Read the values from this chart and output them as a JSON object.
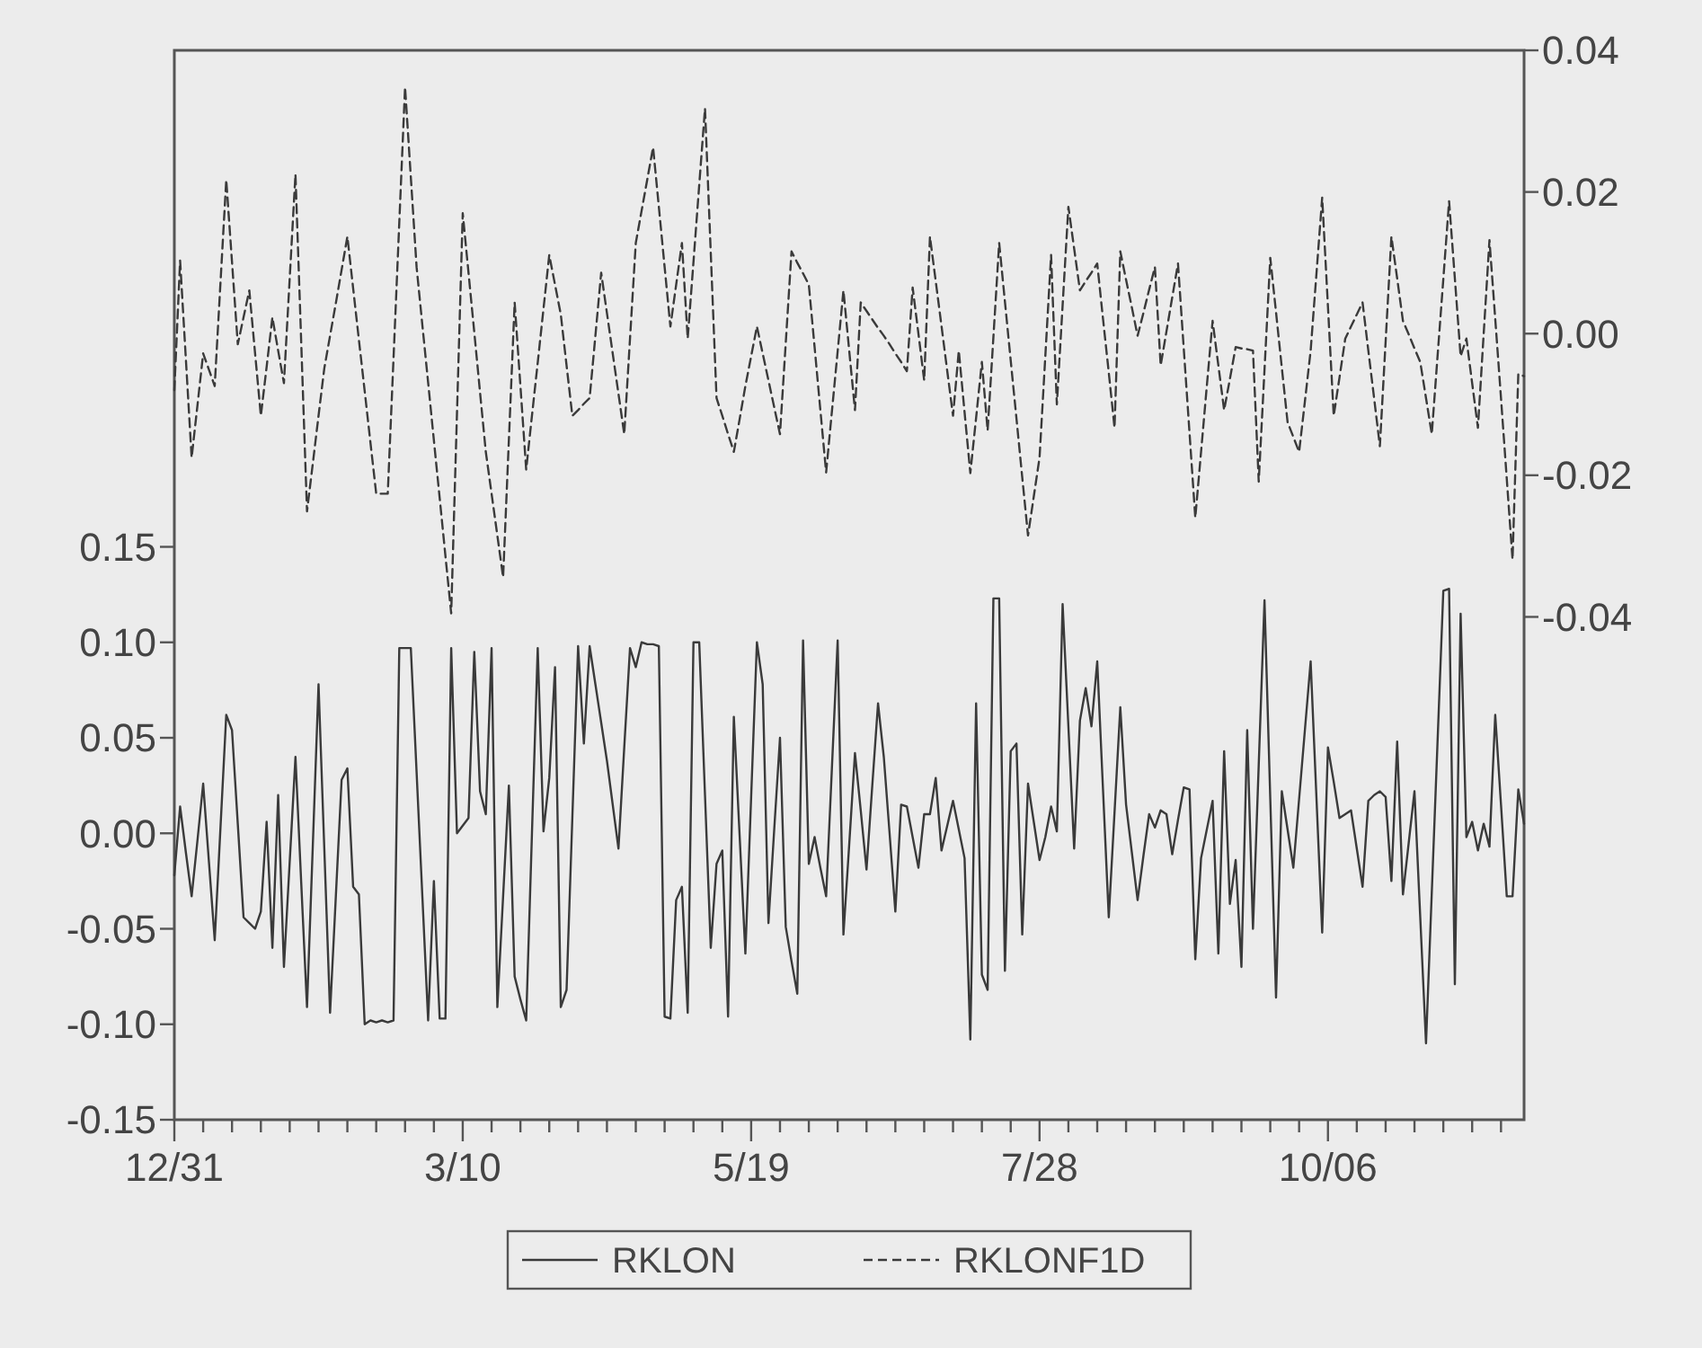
{
  "chart_data": {
    "type": "line",
    "categories": [
      "12/31",
      null,
      null,
      null,
      null,
      null,
      null,
      null,
      null,
      null,
      null,
      null,
      null,
      null,
      null,
      null,
      null,
      null,
      null,
      null,
      null,
      null,
      null,
      null,
      null,
      null,
      null,
      null,
      null,
      null,
      null,
      null,
      null,
      null,
      null,
      null,
      null,
      null,
      null,
      null,
      null,
      null,
      null,
      null,
      null,
      null,
      null,
      null,
      null,
      null,
      "3/10",
      null,
      null,
      null,
      null,
      null,
      null,
      null,
      null,
      null,
      null,
      null,
      null,
      null,
      null,
      null,
      null,
      null,
      null,
      null,
      null,
      null,
      null,
      null,
      null,
      null,
      null,
      null,
      null,
      null,
      null,
      null,
      null,
      null,
      null,
      null,
      null,
      null,
      null,
      null,
      null,
      null,
      null,
      null,
      null,
      null,
      null,
      null,
      null,
      null,
      "5/19",
      null,
      null,
      null,
      null,
      null,
      null,
      null,
      null,
      null,
      null,
      null,
      null,
      null,
      null,
      null,
      null,
      null,
      null,
      null,
      null,
      null,
      null,
      null,
      null,
      null,
      null,
      null,
      null,
      null,
      null,
      null,
      null,
      null,
      null,
      null,
      null,
      null,
      null,
      null,
      null,
      null,
      null,
      null,
      null,
      null,
      null,
      null,
      null,
      null,
      "7/28",
      null,
      null,
      null,
      null,
      null,
      null,
      null,
      null,
      null,
      null,
      null,
      null,
      null,
      null,
      null,
      null,
      null,
      null,
      null,
      null,
      null,
      null,
      null,
      null,
      null,
      null,
      null,
      null,
      null,
      null,
      null,
      null,
      null,
      null,
      null,
      null,
      null,
      null,
      null,
      null,
      null,
      null,
      null,
      null,
      null,
      null,
      null,
      null,
      null,
      "10/06",
      null,
      null,
      null,
      null,
      null,
      null,
      null,
      null,
      null,
      null,
      null,
      null,
      null,
      null,
      null,
      null,
      null,
      null,
      null,
      null,
      null,
      null,
      null,
      null,
      null,
      null,
      null,
      null,
      null,
      null,
      null,
      null,
      null,
      null
    ],
    "ylim": [
      -0.15,
      0.41
    ],
    "yticks": [
      {
        "value": -0.15,
        "label": "-0.15"
      },
      {
        "value": -0.1,
        "label": "-0.10"
      },
      {
        "value": -0.05,
        "label": "-0.05"
      },
      {
        "value": 0,
        "label": "0.00"
      },
      {
        "value": 0.05,
        "label": "0.05"
      },
      {
        "value": 0.1,
        "label": "0.10"
      },
      {
        "value": 0.15,
        "label": "0.15"
      }
    ],
    "y2lim": [
      -0.111,
      0.04
    ],
    "y2ticks": [
      {
        "value": -0.04,
        "label": "-0.04"
      },
      {
        "value": -0.02,
        "label": "-0.02"
      },
      {
        "value": 0,
        "label": "0.00"
      },
      {
        "value": 0.02,
        "label": "0.02"
      },
      {
        "value": 0.04,
        "label": "0.04"
      }
    ],
    "legend": "bottom",
    "series": [
      {
        "name": "RKLON",
        "color": "#3a3a3a",
        "line_style": "solid",
        "values": [
          -0.022,
          0.014,
          -0.01,
          -0.033,
          -0.004,
          0.026,
          -0.015,
          -0.056,
          0.003,
          0.062,
          0.054,
          0.005,
          -0.044,
          -0.047,
          -0.05,
          -0.041,
          0.006,
          -0.06,
          0.02,
          -0.07,
          -0.015,
          0.04,
          -0.026,
          -0.091,
          -0.007,
          0.078,
          -0.008,
          -0.094,
          -0.033,
          0.028,
          0.034,
          -0.028,
          -0.032,
          -0.1,
          -0.098,
          -0.099,
          -0.098,
          -0.099,
          -0.098,
          0.097,
          0.097,
          0.097,
          0.032,
          -0.033,
          -0.098,
          -0.025,
          -0.097,
          -0.097,
          0.097,
          0,
          0.004,
          0.008,
          0.095,
          0.022,
          0.01,
          0.097,
          -0.091,
          -0.033,
          0.025,
          -0.075,
          -0.087,
          -0.098,
          0,
          0.097,
          0.001,
          0.029,
          0.087,
          -0.091,
          -0.082,
          0.008,
          0.098,
          0.047,
          0.098,
          0.078,
          0.058,
          0.038,
          0.015,
          -0.008,
          0.045,
          0.097,
          0.087,
          0.1,
          0.099,
          0.099,
          0.098,
          -0.096,
          -0.097,
          -0.035,
          -0.028,
          -0.094,
          0.1,
          0.1,
          0.02,
          -0.06,
          -0.016,
          -0.009,
          -0.096,
          0.061,
          -0.001,
          -0.063,
          0.019,
          0.1,
          0.078,
          -0.047,
          0.002,
          0.05,
          -0.049,
          -0.067,
          -0.084,
          0.101,
          -0.016,
          -0.002,
          -0.018,
          -0.033,
          0.034,
          0.101,
          -0.053,
          -0.006,
          0.042,
          0.012,
          -0.019,
          0.025,
          0.068,
          0.04,
          0,
          -0.041,
          0.015,
          0.014,
          -0.002,
          -0.018,
          0.01,
          0.01,
          0.029,
          -0.009,
          0.004,
          0.017,
          0.002,
          -0.013,
          -0.108,
          0.068,
          -0.074,
          -0.082,
          0.123,
          0.123,
          -0.072,
          0.043,
          0.047,
          -0.053,
          0.026,
          0.006,
          -0.014,
          -0.002,
          0.014,
          0.001,
          0.12,
          0.056,
          -0.008,
          0.059,
          0.076,
          0.056,
          0.09,
          0.023,
          -0.044,
          0.011,
          0.066,
          0.015,
          -0.01,
          -0.035,
          -0.012,
          0.01,
          0.003,
          0.012,
          0.01,
          -0.011,
          0.007,
          0.024,
          0.023,
          -0.066,
          -0.013,
          0.002,
          0.017,
          -0.063,
          0.043,
          -0.037,
          -0.014,
          -0.07,
          0.054,
          -0.05,
          0.036,
          0.122,
          0.018,
          -0.086,
          0.022,
          0.002,
          -0.018,
          0.018,
          0.054,
          0.09,
          0.019,
          -0.052,
          0.045,
          0.027,
          0.008,
          0.01,
          0.012,
          -0.008,
          -0.028,
          0.017,
          0.02,
          0.022,
          0.019,
          -0.025,
          0.048,
          -0.032,
          -0.005,
          0.022,
          -0.044,
          -0.11,
          -0.031,
          0.048,
          0.127,
          0.128,
          -0.079,
          0.115,
          -0.002,
          0.006,
          -0.009,
          0.005,
          -0.007,
          0.062,
          0.015,
          -0.033,
          -0.033,
          0.023,
          0.005
        ]
      },
      {
        "name": "RKLONF1D",
        "color": "#3a3a3a",
        "line_style": "dashed",
        "axis": "y2",
        "values": [
          -0.008,
          0.0103,
          -0.0036,
          -0.0175,
          -0.0102,
          -0.0028,
          -0.0051,
          -0.0074,
          0.0072,
          0.0217,
          0.0101,
          -0.0015,
          0.0023,
          0.0061,
          -0.0028,
          -0.0116,
          -0.0047,
          0.0023,
          -0.0024,
          -0.007,
          0.0078,
          0.0225,
          -0.0013,
          -0.0251,
          -0.0184,
          -0.0116,
          -0.0049,
          -0.0003,
          0.0043,
          0.009,
          0.0137,
          0.0064,
          -0.0009,
          -0.0081,
          -0.0154,
          -0.0226,
          -0.0226,
          -0.0226,
          -0.0035,
          0.0157,
          0.0348,
          0.0221,
          0.0094,
          0.0012,
          -0.0069,
          -0.0151,
          -0.0232,
          -0.0314,
          -0.0395,
          -0.0113,
          0.017,
          0.0086,
          0.0002,
          -0.0083,
          -0.0167,
          -0.0226,
          -0.0285,
          -0.0344,
          -0.015,
          0.0044,
          -0.0074,
          -0.0192,
          -0.0116,
          -0.0041,
          0.0035,
          0.0111,
          0.0069,
          0.0027,
          -0.0045,
          -0.0116,
          -0.0108,
          -0.0099,
          -0.0091,
          -0.0003,
          0.0086,
          0.0029,
          -0.0028,
          -0.0085,
          -0.0142,
          -0.0007,
          0.0128,
          0.0173,
          0.0218,
          0.0263,
          0.0179,
          0.0094,
          0.001,
          0.0069,
          0.0128,
          -0.0007,
          0.0101,
          0.021,
          0.0318,
          0.0114,
          -0.0091,
          -0.0116,
          -0.0142,
          -0.0167,
          -0.0121,
          -0.0074,
          -0.0032,
          0.001,
          -0.0028,
          -0.0066,
          -0.0104,
          -0.0142,
          -0.0013,
          0.0116,
          0.01,
          0.0085,
          0.0069,
          -0.0019,
          -0.0108,
          -0.0196,
          -0.011,
          -0.0025,
          0.0061,
          -0.0024,
          -0.0108,
          0.0044,
          0.0032,
          0.002,
          0.0008,
          -0.0003,
          -0.0015,
          -0.0028,
          -0.004,
          -0.0053,
          0.0065,
          0,
          -0.0066,
          0.0137,
          0.0074,
          0.0011,
          -0.0053,
          -0.0116,
          -0.0024,
          -0.0111,
          -0.0197,
          -0.0119,
          -0.004,
          -0.0137,
          -0.0005,
          0.0128,
          0.0045,
          -0.0038,
          -0.012,
          -0.0203,
          -0.0285,
          -0.023,
          -0.0175,
          -0.0032,
          0.0111,
          -0.01,
          0.004,
          0.0179,
          0.012,
          0.0061,
          0.0074,
          0.0086,
          0.0099,
          0.0021,
          -0.0055,
          -0.0133,
          0.0116,
          0.0076,
          0.0037,
          -0.0003,
          0.0029,
          0.0062,
          0.0094,
          -0.0045,
          0.0003,
          0.0051,
          0.0099,
          -0.0021,
          -0.014,
          -0.026,
          -0.0167,
          -0.0074,
          0.0018,
          -0.0045,
          -0.0108,
          -0.0064,
          -0.0019,
          -0.0021,
          -0.0022,
          -0.0024,
          -0.0209,
          -0.0051,
          0.0107,
          0.003,
          -0.0048,
          -0.0125,
          -0.0146,
          -0.0167,
          -0.0096,
          -0.0024,
          0.0084,
          0.0192,
          0.0038,
          -0.0116,
          -0.0062,
          -0.0007,
          0.001,
          0.0027,
          0.0044,
          -0.0024,
          -0.0091,
          -0.0159,
          -0.0011,
          0.0137,
          0.0078,
          0.0018,
          -0.0001,
          -0.0021,
          -0.004,
          -0.0091,
          -0.0142,
          -0.0032,
          0.0077,
          0.0187,
          0.0078,
          -0.0032,
          -0.0007,
          -0.007,
          -0.0133,
          0,
          0.0132,
          0.0021,
          -0.0091,
          -0.0205,
          -0.0319,
          -0.0057,
          -0.006
        ]
      }
    ]
  }
}
